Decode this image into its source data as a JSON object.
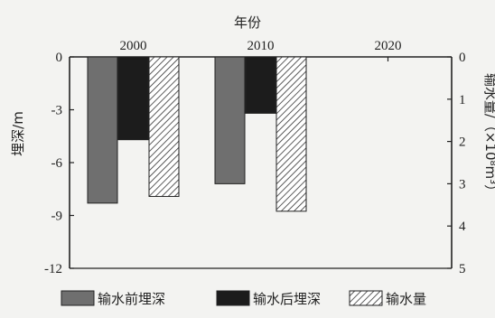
{
  "chart_data": {
    "type": "bar",
    "x_axis_title": "年份",
    "categories": [
      "2000",
      "2010",
      "2020"
    ],
    "left_axis": {
      "label": "埋深/m",
      "ticks": [
        "0",
        "-3",
        "-6",
        "-9",
        "-12"
      ],
      "range": [
        0,
        -12
      ]
    },
    "right_axis": {
      "label": "输水量/（×10⁸m³）",
      "ticks": [
        "0",
        "1",
        "2",
        "3",
        "4",
        "5"
      ],
      "range": [
        0,
        5
      ]
    },
    "series": [
      {
        "name": "输水前埋深",
        "axis": "left",
        "pattern": "solid-gray",
        "color": "#6f6f6f",
        "values": [
          -8.3,
          -7.2,
          null
        ]
      },
      {
        "name": "输水后埋深",
        "axis": "left",
        "pattern": "solid-black",
        "color": "#1c1c1c",
        "values": [
          -4.7,
          -3.2,
          null
        ]
      },
      {
        "name": "输水量",
        "axis": "right",
        "pattern": "hatched",
        "color": "#333333",
        "values": [
          3.3,
          3.65,
          null
        ]
      }
    ],
    "grid": false,
    "legend_position": "bottom"
  }
}
